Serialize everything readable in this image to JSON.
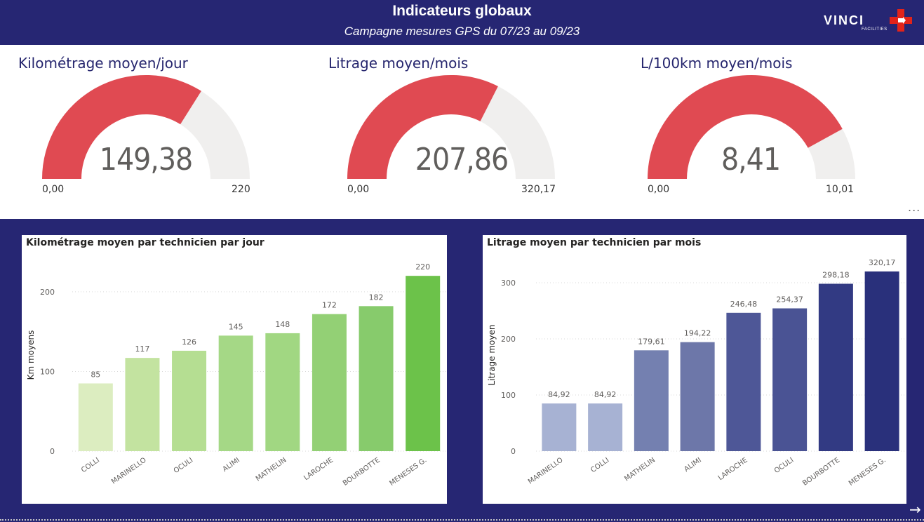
{
  "header": {
    "title": "Indicateurs globaux",
    "subtitle": "Campagne mesures GPS du 07/23 au 09/23",
    "logo_text": "VINCI",
    "logo_sub": "FACILITIES"
  },
  "colors": {
    "header_bg": "#262673",
    "gauge_fill": "#e04a52",
    "gauge_track": "#f0efee",
    "km_bars": [
      "#dcedc0",
      "#c3e3a0",
      "#b5de92",
      "#a5d886",
      "#a1d782",
      "#93d075",
      "#87cb6c",
      "#6cc24a"
    ],
    "litre_bars": [
      "#a7b2d3",
      "#a7b2d3",
      "#7480b0",
      "#6d77a9",
      "#4e5797",
      "#4a5394",
      "#323a83",
      "#29307b"
    ]
  },
  "kpis": [
    {
      "title": "Kilométrage moyen/jour",
      "value_label": "149,38",
      "value": 149.38,
      "min": 0,
      "max": 220,
      "min_label": "0,00",
      "max_label": "220"
    },
    {
      "title": "Litrage moyen/mois",
      "value_label": "207,86",
      "value": 207.86,
      "min": 0,
      "max": 320.17,
      "min_label": "0,00",
      "max_label": "320,17"
    },
    {
      "title": "L/100km moyen/mois",
      "value_label": "8,41",
      "value": 8.41,
      "min": 0,
      "max": 10.01,
      "min_label": "0,00",
      "max_label": "10,01"
    }
  ],
  "more_options": "...",
  "chart_data": [
    {
      "type": "bar",
      "title": "Kilométrage moyen par technicien par jour",
      "xlabel": "",
      "ylabel": "Km moyens",
      "ylim": [
        0,
        236
      ],
      "yticks": [
        0,
        100,
        200
      ],
      "categories": [
        "COLLI",
        "MARINELLO",
        "OCULI",
        "ALIMI",
        "MATHELIN",
        "LAROCHE",
        "BOURBOTTE",
        "MENESES G."
      ],
      "values": [
        85,
        117,
        126,
        145,
        148,
        172,
        182,
        220
      ],
      "value_labels": [
        "85",
        "117",
        "126",
        "145",
        "148",
        "172",
        "182",
        "220"
      ],
      "grid": true
    },
    {
      "type": "bar",
      "title": "Litrage moyen par technicien par mois",
      "xlabel": "",
      "ylabel": "Litrage moyen",
      "ylim": [
        0,
        335
      ],
      "yticks": [
        0,
        100,
        200,
        300
      ],
      "categories": [
        "MARINELLO",
        "COLLI",
        "MATHELIN",
        "ALIMI",
        "LAROCHE",
        "OCULI",
        "BOURBOTTE",
        "MENESES G."
      ],
      "values": [
        84.92,
        84.92,
        179.61,
        194.22,
        246.48,
        254.37,
        298.18,
        320.17
      ],
      "value_labels": [
        "84,92",
        "84,92",
        "179,61",
        "194,22",
        "246,48",
        "254,37",
        "298,18",
        "320,17"
      ],
      "grid": true
    }
  ]
}
